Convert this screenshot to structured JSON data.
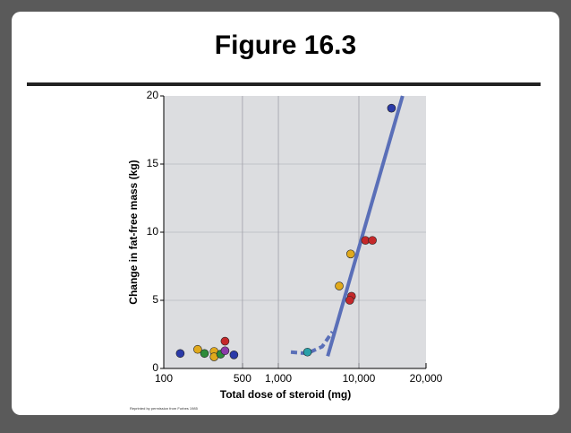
{
  "chart_data": {
    "type": "scatter",
    "title": "Figure 16.3",
    "xlabel": "Total dose of steroid (mg)",
    "ylabel": "Change in fat-free mass (kg)",
    "note": "Reprinted by permission from Forbes 1985",
    "xscale": "log",
    "xlim": [
      100,
      20000
    ],
    "ylim": [
      0,
      20
    ],
    "xticks": [
      100,
      500,
      {
        "value": 1000,
        "label": "1,000"
      },
      {
        "value": 10000,
        "label": "10,000"
      },
      {
        "value": 20000,
        "label": "20,000"
      }
    ],
    "yticks": [
      0,
      5,
      10,
      15,
      20
    ],
    "grid": true,
    "points": {
      "x": [
        140,
        200,
        230,
        280,
        280,
        320,
        350,
        350,
        420,
        2300,
        5700,
        8100,
        7700,
        7900,
        10700,
        11500,
        14000
      ],
      "y": [
        1.1,
        1.4,
        1.1,
        1.25,
        0.85,
        1.05,
        2.0,
        1.3,
        1.0,
        1.2,
        6.05,
        5.3,
        5.0,
        8.4,
        9.4,
        9.4,
        19.1
      ],
      "colors": [
        "#2b3aa8",
        "#e0a91c",
        "#2e8b3a",
        "#e0a91c",
        "#e0a91c",
        "#2e8b3a",
        "#c4282a",
        "#8a3aa8",
        "#2b3aa8",
        "#2aa0a8",
        "#e0a91c",
        "#c4282a",
        "#c4282a",
        "#e0a91c",
        "#c4282a",
        "#c4282a",
        "#2b3aa8"
      ]
    },
    "fit_line": {
      "color": "#5a6fb8",
      "x": [
        4100,
        15700
      ],
      "y": [
        0.9,
        20
      ]
    },
    "curve": {
      "color": "#5a6fb8",
      "x": [
        1430,
        2270,
        3500,
        4700
      ],
      "y": [
        1.2,
        1.1,
        1.6,
        2.7
      ]
    }
  }
}
